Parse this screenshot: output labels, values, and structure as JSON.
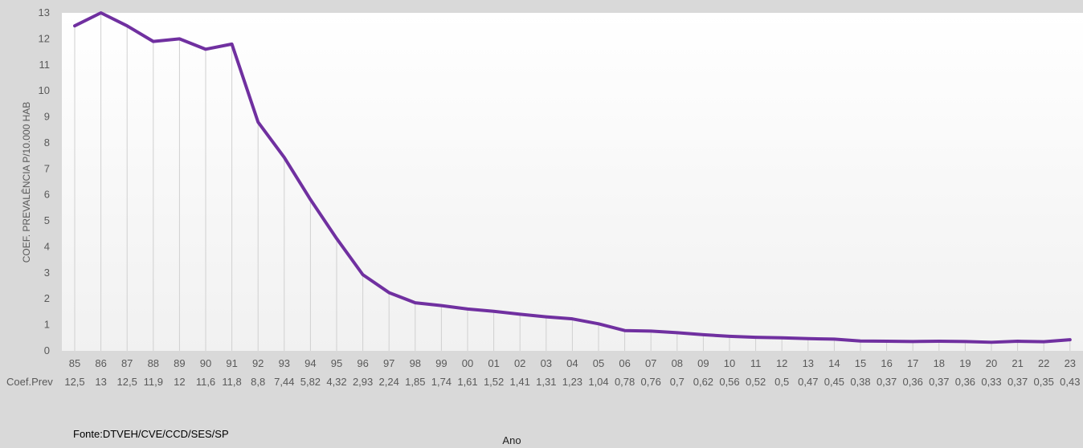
{
  "chart_data": {
    "type": "line",
    "title": "",
    "xlabel": "Ano",
    "ylabel": "COEF. PREVALÊNCIA P/10.000 HAB",
    "ylim": [
      0,
      13
    ],
    "yticks": [
      "0",
      "1",
      "2",
      "3",
      "4",
      "5",
      "6",
      "7",
      "8",
      "9",
      "10",
      "11",
      "12",
      "13"
    ],
    "grid": "vertical",
    "legend": "none",
    "categories": [
      "85",
      "86",
      "87",
      "88",
      "89",
      "90",
      "91",
      "92",
      "93",
      "94",
      "95",
      "96",
      "97",
      "98",
      "99",
      "00",
      "01",
      "02",
      "03",
      "04",
      "05",
      "06",
      "07",
      "08",
      "09",
      "10",
      "11",
      "12",
      "13",
      "14",
      "15",
      "16",
      "17",
      "18",
      "19",
      "20",
      "21",
      "22",
      "23"
    ],
    "series": [
      {
        "name": "Coef.Prev",
        "color": "#7030a0",
        "values": [
          12.5,
          13,
          12.5,
          11.9,
          12,
          11.6,
          11.8,
          8.8,
          7.44,
          5.82,
          4.32,
          2.93,
          2.24,
          1.85,
          1.74,
          1.61,
          1.52,
          1.41,
          1.31,
          1.23,
          1.04,
          0.78,
          0.76,
          0.7,
          0.62,
          0.56,
          0.52,
          0.5,
          0.47,
          0.45,
          0.38,
          0.37,
          0.36,
          0.37,
          0.36,
          0.33,
          0.37,
          0.35,
          0.43
        ],
        "value_labels": [
          "12,5",
          "13",
          "12,5",
          "11,9",
          "12",
          "11,6",
          "11,8",
          "8,8",
          "7,44",
          "5,82",
          "4,32",
          "2,93",
          "2,24",
          "1,85",
          "1,74",
          "1,61",
          "1,52",
          "1,41",
          "1,31",
          "1,23",
          "1,04",
          "0,78",
          "0,76",
          "0,7",
          "0,62",
          "0,56",
          "0,52",
          "0,5",
          "0,47",
          "0,45",
          "0,38",
          "0,37",
          "0,36",
          "0,37",
          "0,36",
          "0,33",
          "0,37",
          "0,35",
          "0,43"
        ]
      }
    ],
    "table_row_label": "Coef.Prev",
    "source": "Fonte:DTVEH/CVE/CCD/SES/SP"
  }
}
